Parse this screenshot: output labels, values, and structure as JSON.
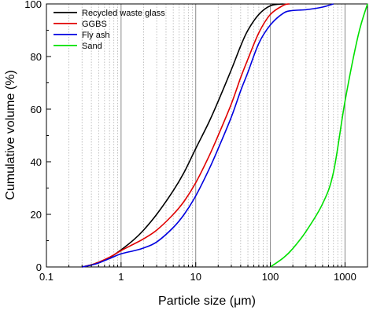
{
  "chart_data": {
    "type": "line",
    "xlabel": "Particle size (μm)",
    "ylabel": "Cumulative volume (%)",
    "x_scale": "log",
    "xlim": [
      0.1,
      2000
    ],
    "ylim": [
      0,
      100
    ],
    "x_ticks": [
      0.1,
      1,
      10,
      100,
      1000
    ],
    "x_tick_labels": [
      "0.1",
      "1",
      "10",
      "100",
      "1000"
    ],
    "y_ticks": [
      0,
      20,
      40,
      60,
      80,
      100
    ],
    "y_tick_labels": [
      "0",
      "20",
      "40",
      "60",
      "80",
      "100"
    ],
    "grid": "vertical minor and major (log decades)",
    "legend_position": "top-left",
    "series": [
      {
        "name": "Recycled waste glass",
        "color": "#000000",
        "points": [
          [
            0.3,
            0
          ],
          [
            0.4,
            0.8
          ],
          [
            0.5,
            1.8
          ],
          [
            0.7,
            3.5
          ],
          [
            1,
            6.5
          ],
          [
            1.5,
            10.5
          ],
          [
            2,
            14
          ],
          [
            3,
            20
          ],
          [
            5,
            29
          ],
          [
            7,
            36
          ],
          [
            10,
            45
          ],
          [
            15,
            55
          ],
          [
            20,
            63
          ],
          [
            30,
            75
          ],
          [
            40,
            84
          ],
          [
            50,
            90
          ],
          [
            70,
            96
          ],
          [
            100,
            99.3
          ],
          [
            150,
            100
          ]
        ]
      },
      {
        "name": "GGBS",
        "color": "#e00000",
        "points": [
          [
            0.3,
            0
          ],
          [
            0.4,
            0.8
          ],
          [
            0.5,
            1.8
          ],
          [
            0.7,
            3.7
          ],
          [
            1,
            6.2
          ],
          [
            1.5,
            8.8
          ],
          [
            2,
            10.7
          ],
          [
            3,
            14
          ],
          [
            5,
            20
          ],
          [
            7,
            25
          ],
          [
            10,
            32
          ],
          [
            15,
            42
          ],
          [
            20,
            50
          ],
          [
            30,
            62
          ],
          [
            40,
            72
          ],
          [
            50,
            79
          ],
          [
            70,
            89
          ],
          [
            100,
            96
          ],
          [
            150,
            99.5
          ],
          [
            180,
            100
          ]
        ]
      },
      {
        "name": "Fly ash",
        "color": "#0000e0",
        "points": [
          [
            0.3,
            0
          ],
          [
            0.4,
            0.7
          ],
          [
            0.5,
            1.5
          ],
          [
            0.7,
            3.2
          ],
          [
            1,
            5
          ],
          [
            1.5,
            6.2
          ],
          [
            2,
            7.2
          ],
          [
            3,
            9.5
          ],
          [
            5,
            15
          ],
          [
            7,
            20
          ],
          [
            10,
            27
          ],
          [
            15,
            37
          ],
          [
            20,
            45
          ],
          [
            30,
            57
          ],
          [
            40,
            67
          ],
          [
            50,
            74
          ],
          [
            70,
            85
          ],
          [
            100,
            92
          ],
          [
            150,
            96.5
          ],
          [
            200,
            97.5
          ],
          [
            300,
            97.8
          ],
          [
            500,
            98.8
          ],
          [
            700,
            100
          ]
        ]
      },
      {
        "name": "Sand",
        "color": "#00e000",
        "points": [
          [
            100,
            0
          ],
          [
            150,
            3.5
          ],
          [
            200,
            7
          ],
          [
            300,
            13.5
          ],
          [
            500,
            24
          ],
          [
            700,
            36
          ],
          [
            1000,
            63
          ],
          [
            1500,
            88
          ],
          [
            2000,
            100
          ]
        ]
      }
    ]
  }
}
